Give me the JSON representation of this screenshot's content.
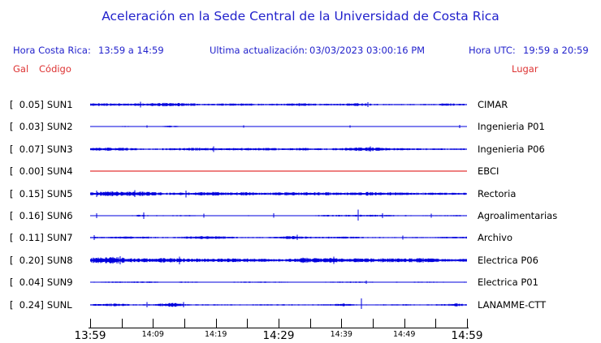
{
  "title": "Aceleración en la Sede Central de la Universidad de Costa Rica",
  "colors": {
    "blue_text": "#2222cc",
    "red_text": "#dd3333",
    "trace_blue": "#0000dd",
    "trace_red": "#dd0000",
    "black": "#000000"
  },
  "header": {
    "hora_cr_label": "Hora Costa Rica:",
    "hora_cr_value": "13:59 a 14:59",
    "update_label": "Ultima actualización:",
    "update_value": "03/03/2023 03:00:16 PM",
    "hora_utc_label": "Hora UTC:",
    "hora_utc_value": "19:59 a 20:59"
  },
  "columns": {
    "gal": "Gal",
    "codigo": "Código",
    "lugar": "Lugar"
  },
  "stations": [
    {
      "gal_display": "[  0.05]",
      "gal": 0.05,
      "code": "SUN1",
      "place": "CIMAR",
      "color": "#0000dd",
      "amp": 1.3,
      "seed": 11,
      "bursts": [
        [
          15,
          60,
          1.5
        ],
        [
          95,
          45,
          1.6
        ],
        [
          150,
          60,
          1.4
        ],
        [
          250,
          30,
          1.3
        ],
        [
          330,
          25,
          1.5
        ],
        [
          440,
          20,
          1.6
        ]
      ],
      "spikes": [
        [
          62,
          3.5,
          3.5
        ],
        [
          342,
          3,
          3
        ]
      ]
    },
    {
      "gal_display": "[  0.03]",
      "gal": 0.03,
      "code": "SUN2",
      "place": "Ingenieria P01",
      "color": "#0000dd",
      "amp": 0.35,
      "seed": 22,
      "bursts": [
        [
          44,
          10,
          3.5
        ],
        [
          92,
          10,
          3.8
        ],
        [
          104,
          10,
          3.0
        ],
        [
          290,
          25,
          1.8
        ]
      ],
      "spikes": [
        [
          70,
          1.5,
          1.5
        ],
        [
          189,
          1.5,
          1.5
        ],
        [
          320,
          1.5,
          1.5
        ],
        [
          455,
          2,
          2
        ]
      ]
    },
    {
      "gal_display": "[  0.07]",
      "gal": 0.07,
      "code": "SUN3",
      "place": "Ingenieria P06",
      "color": "#0000dd",
      "amp": 1.5,
      "seed": 33,
      "bursts": [
        [
          20,
          40,
          1.3
        ],
        [
          140,
          25,
          1.5
        ],
        [
          340,
          30,
          1.6
        ],
        [
          420,
          20,
          1.3
        ]
      ],
      "spikes": [
        [
          152,
          3.5,
          3.5
        ],
        [
          345,
          3.5,
          3
        ]
      ]
    },
    {
      "gal_display": "[  0.00]",
      "gal": 0.0,
      "code": "SUN4",
      "place": "EBCI",
      "color": "#dd0000",
      "amp": 0,
      "seed": 44,
      "bursts": [],
      "spikes": []
    },
    {
      "gal_display": "[  0.15]",
      "gal": 0.15,
      "code": "SUN5",
      "place": "Rectoria",
      "color": "#0000dd",
      "amp": 2.3,
      "seed": 55,
      "bursts": [
        [
          40,
          60,
          1.25
        ],
        [
          160,
          40,
          1.2
        ],
        [
          300,
          50,
          1.15
        ]
      ],
      "spikes": [
        [
          8,
          4,
          4
        ],
        [
          55,
          4.5,
          4
        ],
        [
          118,
          4,
          4.5
        ]
      ]
    },
    {
      "gal_display": "[  0.16]",
      "gal": 0.16,
      "code": "SUN6",
      "place": "Agroalimentarias",
      "color": "#0000dd",
      "amp": 0.7,
      "seed": 66,
      "bursts": [
        [
          330,
          50,
          2.2
        ],
        [
          60,
          12,
          2.0
        ]
      ],
      "spikes": [
        [
          8,
          3,
          3
        ],
        [
          66,
          4,
          4
        ],
        [
          140,
          2.5,
          2.5
        ],
        [
          226,
          3,
          2.5
        ],
        [
          330,
          7.5,
          6
        ],
        [
          360,
          3,
          3
        ],
        [
          420,
          2.5,
          2.5
        ]
      ]
    },
    {
      "gal_display": "[  0.11]",
      "gal": 0.11,
      "code": "SUN7",
      "place": "Archivo",
      "color": "#0000dd",
      "amp": 1.2,
      "seed": 77,
      "bursts": [
        [
          30,
          60,
          1.5
        ],
        [
          150,
          40,
          1.4
        ],
        [
          250,
          25,
          1.5
        ]
      ],
      "spikes": [
        [
          5,
          3,
          3
        ],
        [
          255,
          3.5,
          3
        ],
        [
          385,
          2.5,
          2.5
        ]
      ]
    },
    {
      "gal_display": "[  0.20]",
      "gal": 0.2,
      "code": "SUN8",
      "place": "Electrica P06",
      "color": "#0000dd",
      "amp": 2.6,
      "seed": 88,
      "bursts": [
        [
          30,
          35,
          1.7
        ],
        [
          95,
          45,
          1.45
        ],
        [
          190,
          30,
          1.3
        ],
        [
          290,
          45,
          1.35
        ],
        [
          420,
          30,
          1.4
        ]
      ],
      "spikes": [
        [
          37,
          5,
          5
        ],
        [
          110,
          4.5,
          5
        ],
        [
          300,
          4.5,
          4.5
        ]
      ]
    },
    {
      "gal_display": "[  0.04]",
      "gal": 0.04,
      "code": "SUN9",
      "place": "Electrica P01",
      "color": "#0000dd",
      "amp": 0.75,
      "seed": 99,
      "bursts": [
        [
          60,
          40,
          1.4
        ],
        [
          200,
          60,
          1.3
        ],
        [
          330,
          30,
          1.5
        ]
      ],
      "spikes": [
        [
          340,
          2,
          2
        ]
      ]
    },
    {
      "gal_display": "[  0.24]",
      "gal": 0.24,
      "code": "SUNL",
      "place": "LANAMME-CTT",
      "color": "#0000dd",
      "amp": 0.9,
      "seed": 111,
      "bursts": [
        [
          40,
          40,
          2.2
        ],
        [
          100,
          25,
          2.4
        ],
        [
          310,
          20,
          1.8
        ],
        [
          450,
          14,
          2.2
        ]
      ],
      "spikes": [
        [
          334,
          8,
          5
        ],
        [
          70,
          3.5,
          3
        ],
        [
          115,
          3.5,
          3
        ]
      ]
    }
  ],
  "axis": {
    "tick_count": 13,
    "labels": [
      {
        "tick": 0,
        "text": "13:59",
        "major": true
      },
      {
        "tick": 2,
        "text": "14:09",
        "major": false
      },
      {
        "tick": 4,
        "text": "14:19",
        "major": false
      },
      {
        "tick": 6,
        "text": "14:29",
        "major": true
      },
      {
        "tick": 8,
        "text": "14:39",
        "major": false
      },
      {
        "tick": 10,
        "text": "14:49",
        "major": false
      },
      {
        "tick": 12,
        "text": "14:59",
        "major": true
      }
    ]
  },
  "chart_data": {
    "type": "line",
    "title": "Aceleración en la Sede Central de la Universidad de Costa Rica",
    "subtitle": "Ultima actualización: 03/03/2023 03:00:16 PM",
    "xlabel": "Hora Costa Rica 13:59 a 14:59 (Hora UTC 19:59 a 20:59)",
    "ylabel": "Aceleración (Gal)",
    "x_range": [
      "13:59",
      "14:59"
    ],
    "x_tick_interval_min": 5,
    "x_labeled_ticks": [
      "13:59",
      "14:09",
      "14:19",
      "14:29",
      "14:39",
      "14:49",
      "14:59"
    ],
    "legend_position": "none",
    "grid": false,
    "series": [
      {
        "name": "SUN1",
        "place": "CIMAR",
        "peak_gal": 0.05,
        "status": "active"
      },
      {
        "name": "SUN2",
        "place": "Ingenieria P01",
        "peak_gal": 0.03,
        "status": "active"
      },
      {
        "name": "SUN3",
        "place": "Ingenieria P06",
        "peak_gal": 0.07,
        "status": "active"
      },
      {
        "name": "SUN4",
        "place": "EBCI",
        "peak_gal": 0.0,
        "status": "flat-line"
      },
      {
        "name": "SUN5",
        "place": "Rectoria",
        "peak_gal": 0.15,
        "status": "active"
      },
      {
        "name": "SUN6",
        "place": "Agroalimentarias",
        "peak_gal": 0.16,
        "status": "active"
      },
      {
        "name": "SUN7",
        "place": "Archivo",
        "peak_gal": 0.11,
        "status": "active"
      },
      {
        "name": "SUN8",
        "place": "Electrica P06",
        "peak_gal": 0.2,
        "status": "active"
      },
      {
        "name": "SUN9",
        "place": "Electrica P01",
        "peak_gal": 0.04,
        "status": "active"
      },
      {
        "name": "SUNL",
        "place": "LANAMME-CTT",
        "peak_gal": 0.24,
        "status": "active"
      }
    ]
  }
}
